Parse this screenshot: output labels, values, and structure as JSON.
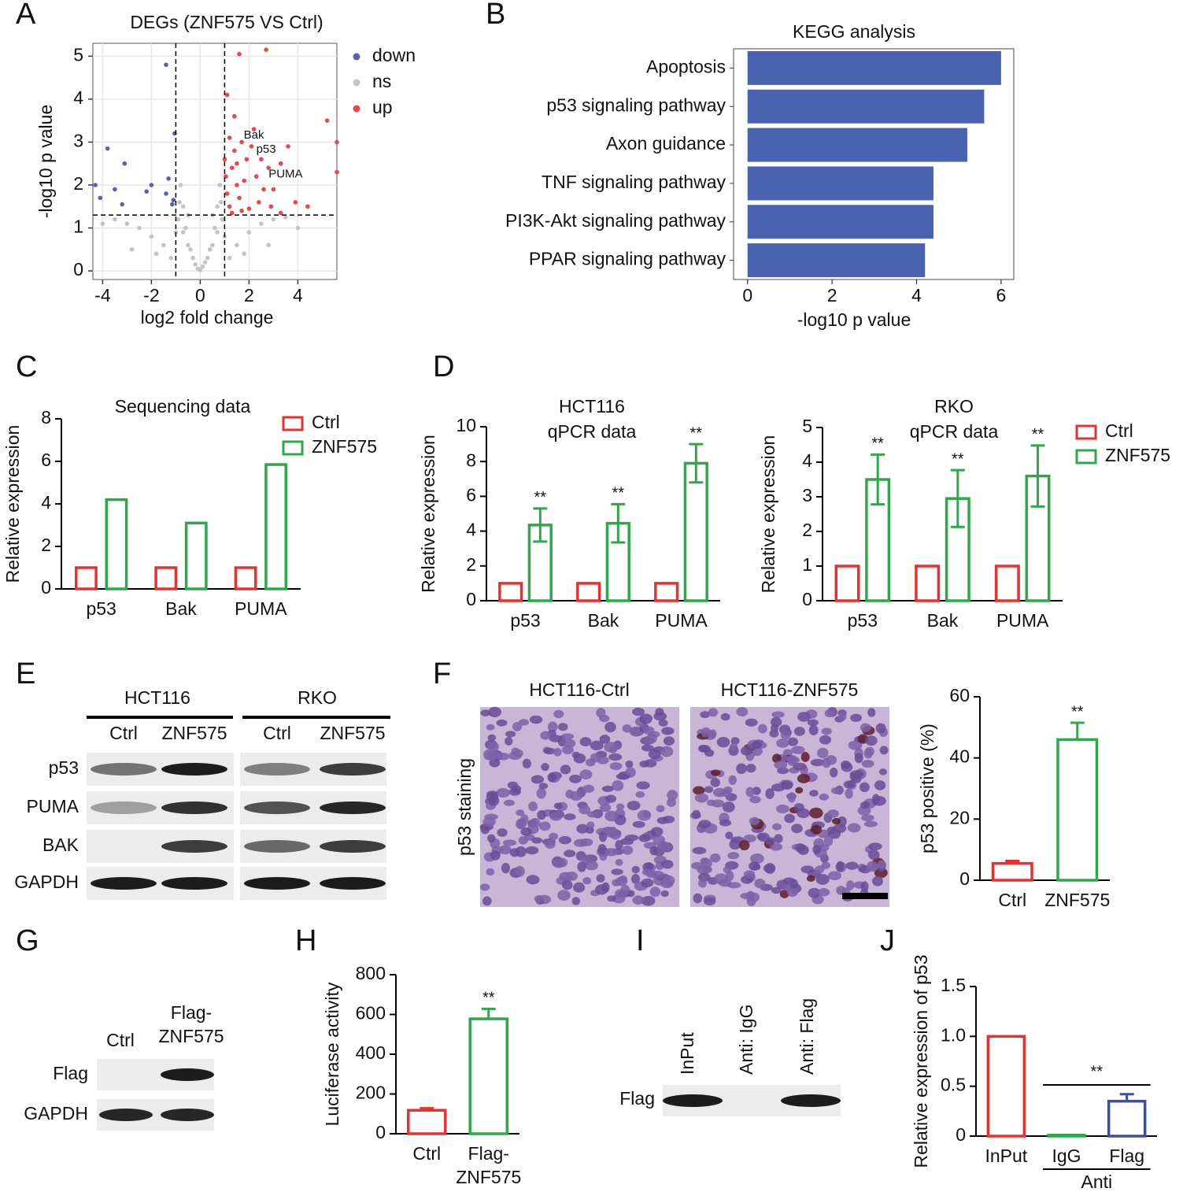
{
  "panel_labels": [
    "A",
    "B",
    "C",
    "D",
    "E",
    "F",
    "G",
    "H",
    "I",
    "J"
  ],
  "chart_data": [
    {
      "type": "scatter",
      "title": "DEGs (ZNF575 VS Ctrl)",
      "xlabel": "log2 fold change",
      "ylabel": "-log10 p value",
      "xlim": [
        -4.4,
        5.6
      ],
      "ylim": [
        -0.2,
        5.3
      ],
      "xticks": [
        -4,
        -2,
        0,
        2,
        4
      ],
      "yticks": [
        0,
        1,
        2,
        3,
        4,
        5
      ],
      "grid": true,
      "vlines": [
        -1,
        1
      ],
      "hline": 1.3,
      "series": [
        {
          "name": "down",
          "color": "#5a5fb0",
          "x": [
            -4.3,
            -4.1,
            -3.8,
            -3.5,
            -3.1,
            -3.2,
            -2.2,
            -2.0,
            -1.4,
            -1.4,
            -1.3,
            -1.15,
            -1.1,
            -1.05
          ],
          "values": [
            2.0,
            1.7,
            2.85,
            1.9,
            2.5,
            1.55,
            1.85,
            2.0,
            4.8,
            1.8,
            2.15,
            1.55,
            1.65,
            3.2
          ]
        },
        {
          "name": "ns",
          "color": "#c4c4c4",
          "x": [
            -0.1,
            0.1,
            -0.3,
            0.3,
            -0.5,
            0.5,
            -0.7,
            0.7,
            -0.9,
            0.9,
            -0.85,
            0.85,
            -0.8,
            0.8,
            -0.6,
            0.6,
            -0.4,
            0.4,
            -1.5,
            1.5,
            -2.0,
            2.0,
            -2.5,
            2.5,
            -3.0,
            3.0,
            -3.5,
            3.5,
            -1.2,
            1.2,
            -1.8,
            1.8,
            -0.2,
            0.2,
            -0.7,
            0.7,
            -1.0,
            1.0,
            4.0,
            -4.0,
            0,
            -0.5,
            0.5,
            2.8,
            -2.8
          ],
          "values": [
            0.05,
            0.1,
            0.3,
            0.3,
            0.6,
            0.6,
            0.9,
            0.9,
            1.2,
            1.2,
            1.6,
            1.6,
            2.0,
            2.0,
            1.0,
            1.0,
            0.5,
            0.5,
            0.6,
            0.6,
            0.8,
            0.9,
            1.0,
            1.1,
            1.1,
            1.2,
            1.2,
            1.25,
            0.3,
            0.3,
            0.4,
            0.4,
            0.15,
            0.2,
            1.5,
            1.5,
            0.9,
            0.8,
            1.0,
            1.1,
            0.02,
            1.3,
            1.3,
            0.6,
            0.5
          ]
        },
        {
          "name": "up",
          "color": "#e84848",
          "x": [
            1.6,
            2.7,
            5.2,
            5.6,
            5.6,
            1.2,
            1.4,
            1.3,
            1.5,
            1.7,
            1.9,
            2.1,
            2.3,
            2.5,
            2.8,
            3.0,
            3.3,
            3.6,
            3.9,
            4.4,
            1.1,
            1.2,
            1.6,
            2.0,
            2.4,
            2.9,
            3.3,
            1.05,
            1.8,
            2.2,
            1.4,
            1.1,
            1.0,
            1.3,
            1.7,
            2.6,
            1.5
          ],
          "values": [
            5.05,
            5.15,
            3.5,
            3.0,
            2.3,
            3.1,
            2.8,
            2.4,
            2.0,
            3.0,
            2.6,
            2.9,
            2.2,
            2.6,
            2.4,
            1.9,
            2.5,
            2.9,
            1.6,
            1.5,
            1.8,
            1.5,
            1.7,
            1.45,
            1.6,
            1.5,
            1.35,
            2.2,
            2.1,
            3.3,
            3.6,
            4.1,
            2.6,
            1.35,
            1.4,
            1.9,
            2.5
          ]
        }
      ],
      "annotations": [
        {
          "text": "Bak",
          "x": 2.2,
          "y": 3.15
        },
        {
          "text": "p53",
          "x": 2.7,
          "y": 2.82
        },
        {
          "text": "PUMA",
          "x": 3.5,
          "y": 2.25
        }
      ]
    },
    {
      "type": "hbar",
      "title": "KEGG analysis",
      "xlabel": "-log10 p value",
      "categories": [
        "Apoptosis",
        "p53 signaling pathway",
        "Axon guidance",
        "TNF signaling pathway",
        "PI3K-Akt signaling pathway",
        "PPAR signaling pathway"
      ],
      "values": [
        6.0,
        5.6,
        5.2,
        4.4,
        4.4,
        4.2
      ],
      "color": "#4a63b0",
      "xlim": [
        -0.33,
        6.3
      ],
      "xticks": [
        0,
        2,
        4,
        6
      ]
    },
    {
      "type": "bar",
      "title": "Sequencing data",
      "ylabel": "Relative expression",
      "categories": [
        "p53",
        "Bak",
        "PUMA"
      ],
      "series": [
        {
          "name": "Ctrl",
          "color": "#e8312f",
          "values": [
            1,
            1,
            1
          ]
        },
        {
          "name": "ZNF575",
          "color": "#2ea84a",
          "values": [
            4.2,
            3.1,
            5.85
          ]
        }
      ],
      "ylim": [
        0,
        8
      ],
      "yticks": [
        0,
        2,
        4,
        6,
        8
      ]
    },
    {
      "type": "bar",
      "title": [
        "HCT116",
        "qPCR data"
      ],
      "ylabel": "Relative expression",
      "categories": [
        "p53",
        "Bak",
        "PUMA"
      ],
      "series": [
        {
          "name": "Ctrl",
          "color": "#e8312f",
          "values": [
            1,
            1,
            1
          ]
        },
        {
          "name": "ZNF575",
          "color": "#2ea84a",
          "values": [
            4.35,
            4.45,
            7.9
          ],
          "errors": [
            0.95,
            1.1,
            1.1
          ]
        }
      ],
      "annotations": [
        "**",
        "**",
        "**"
      ],
      "ylim": [
        0,
        10
      ],
      "yticks": [
        0,
        2,
        4,
        6,
        8,
        10
      ]
    },
    {
      "type": "bar",
      "title": [
        "RKO",
        "qPCR data"
      ],
      "ylabel": "Relative expression",
      "categories": [
        "p53",
        "Bak",
        "PUMA"
      ],
      "series": [
        {
          "name": "Ctrl",
          "color": "#e8312f",
          "values": [
            1,
            1,
            1
          ]
        },
        {
          "name": "ZNF575",
          "color": "#2ea84a",
          "values": [
            3.5,
            2.95,
            3.6
          ],
          "errors": [
            0.72,
            0.82,
            0.88
          ]
        }
      ],
      "annotations": [
        "**",
        "**",
        "**"
      ],
      "ylim": [
        0,
        5
      ],
      "yticks": [
        0,
        1,
        2,
        3,
        4,
        5
      ]
    },
    {
      "type": "bar",
      "ylabel": "p53 positive (%)",
      "categories": [
        "Ctrl",
        "ZNF575"
      ],
      "values": [
        5.5,
        46
      ],
      "errors": [
        0.8,
        5.5
      ],
      "colors": [
        "#e8312f",
        "#2ea84a"
      ],
      "annotations": [
        null,
        "**"
      ],
      "ylim": [
        0,
        60
      ],
      "yticks": [
        0,
        20,
        40,
        60
      ]
    },
    {
      "type": "bar",
      "ylabel": "Luciferase activity",
      "categories": [
        "Ctrl",
        "Flag-ZNF575"
      ],
      "values": [
        118,
        578
      ],
      "errors": [
        10,
        50
      ],
      "colors": [
        "#e8312f",
        "#2ea84a"
      ],
      "annotations": [
        null,
        "**"
      ],
      "ylim": [
        0,
        800
      ],
      "yticks": [
        0,
        200,
        400,
        600,
        800
      ]
    },
    {
      "type": "bar",
      "ylabel": "Relative expression of p53",
      "categories": [
        "InPut",
        "IgG",
        "Flag"
      ],
      "values": [
        1.0,
        0.01,
        0.35
      ],
      "errors": [
        null,
        null,
        0.07
      ],
      "colors": [
        "#e8312f",
        "#2ea84a",
        "#3a4da8"
      ],
      "bracket_label": "**",
      "group_label": "Anti",
      "ylim": [
        0,
        1.5
      ],
      "yticks": [
        0,
        0.5,
        {
          "value": 1,
          "label": "1.0"
        },
        1.5
      ]
    }
  ],
  "blot_E": {
    "cell_lines": [
      "HCT116",
      "RKO"
    ],
    "lanes": [
      "Ctrl",
      "ZNF575",
      "Ctrl",
      "ZNF575"
    ],
    "proteins": [
      "p53",
      "PUMA",
      "BAK",
      "GAPDH"
    ]
  },
  "ihc_F": {
    "titles": [
      "HCT116-Ctrl",
      "HCT116-ZNF575"
    ],
    "ylabel": "p53 staining"
  },
  "blot_G": {
    "lanes": [
      "Ctrl",
      "Flag-ZNF575"
    ],
    "proteins": [
      "Flag",
      "GAPDH"
    ]
  },
  "blot_I": {
    "lanes": [
      "InPut",
      "Anti: IgG",
      "Anti: Flag"
    ],
    "proteins": [
      "Flag"
    ]
  }
}
